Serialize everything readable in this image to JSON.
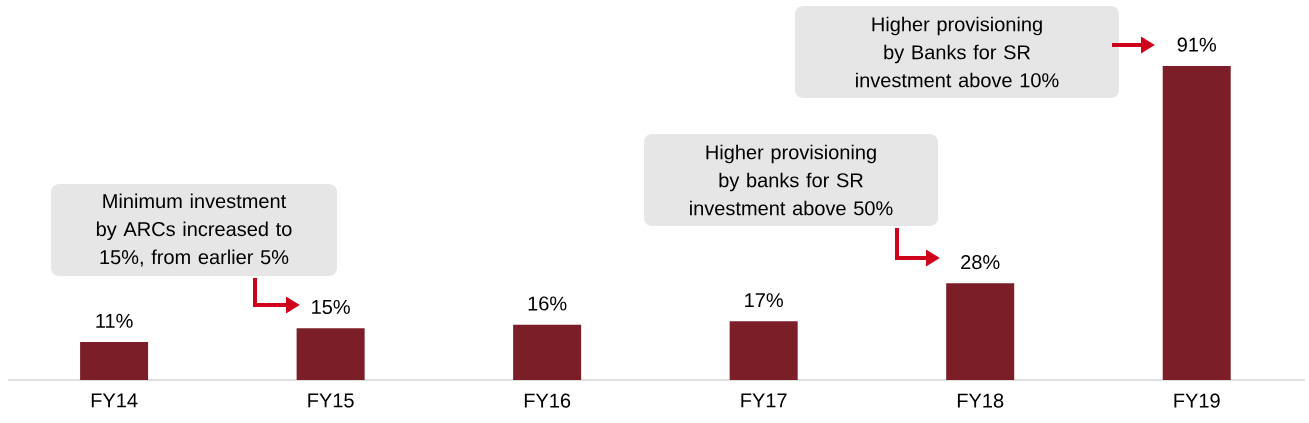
{
  "chart_data": {
    "type": "bar",
    "categories": [
      "FY14",
      "FY15",
      "FY16",
      "FY17",
      "FY18",
      "FY19"
    ],
    "values": [
      11,
      15,
      16,
      17,
      28,
      91
    ],
    "value_labels": [
      "11%",
      "15%",
      "16%",
      "17%",
      "28%",
      "91%"
    ],
    "color": "#7b1e28",
    "annotations": [
      "Minimum investment by ARCs increased to 15%, from earlier 5%",
      "Higher provisioning by banks for SR investment above 50%",
      "Higher provisioning by Banks for SR investment above 10%"
    ]
  }
}
